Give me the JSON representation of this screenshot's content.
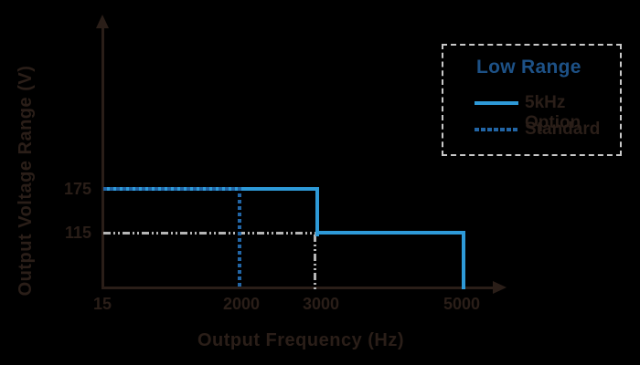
{
  "colors": {
    "background": "#000000",
    "axis_and_text": "#2a1e18",
    "series_solid_blue": "#2E9AD8",
    "series_dashed_blue": "#2265A5",
    "legend_title_blue": "#1d5186",
    "guide_gray": "#b5b5b5",
    "legend_border_gray": "#c9c9c9"
  },
  "axes": {
    "x_title": "Output Frequency (Hz)",
    "y_title": "Output Voltage Range (V)",
    "x_ticks": {
      "t15": "15",
      "t2000": "2000",
      "t3000": "3000",
      "t5000": "5000"
    },
    "y_ticks": {
      "t175": "175",
      "t115": "115"
    }
  },
  "legend": {
    "title": "Low Range",
    "entry1": "5kHz Option",
    "entry2": "Standard"
  },
  "chart_data": {
    "type": "line",
    "title": "",
    "xlabel": "Output Frequency (Hz)",
    "ylabel": "Output Voltage Range (V)",
    "x_tick_values": [
      15,
      2000,
      3000,
      5000
    ],
    "y_tick_values": [
      115,
      175
    ],
    "xlim": [
      15,
      5500
    ],
    "ylim": [
      0,
      230
    ],
    "grid": false,
    "x_scale_note": "schematic non-linear spacing",
    "legend_position": "top-right",
    "legend_title": "Low Range",
    "series": [
      {
        "name": "5kHz Option",
        "style": "solid",
        "color": "#2E9AD8",
        "points": [
          [
            15,
            175
          ],
          [
            3000,
            175
          ],
          [
            3000,
            115
          ],
          [
            5000,
            115
          ],
          [
            5000,
            0
          ]
        ]
      },
      {
        "name": "Standard",
        "style": "dashed",
        "color": "#2265A5",
        "points": [
          [
            15,
            175
          ],
          [
            2000,
            175
          ],
          [
            2000,
            0
          ]
        ]
      }
    ],
    "guide_lines": [
      {
        "style": "dash-dot",
        "color": "#b5b5b5",
        "points": [
          [
            15,
            115
          ],
          [
            3000,
            115
          ],
          [
            3000,
            0
          ]
        ]
      }
    ]
  }
}
